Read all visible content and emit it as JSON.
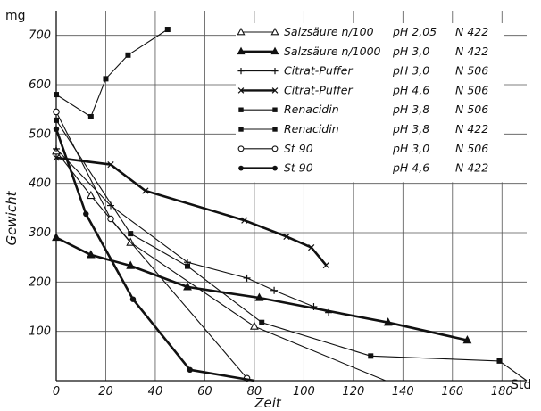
{
  "chart_data": {
    "type": "line",
    "title": "",
    "xlabel": "Zeit",
    "ylabel": "Gewicht",
    "y_unit": "mg",
    "x_unit": "Std",
    "xlim": [
      0,
      190
    ],
    "ylim": [
      0,
      750
    ],
    "x_ticks": [
      0,
      20,
      40,
      60,
      80,
      100,
      120,
      140,
      160,
      180
    ],
    "y_ticks": [
      100,
      200,
      300,
      400,
      500,
      600,
      700
    ],
    "grid": true,
    "legend_position": "top-right",
    "series": [
      {
        "label": "Salzsäure n/100",
        "ph": "pH 2,05",
        "code": "N 422",
        "marker": "triangle-open",
        "line": "thin",
        "points": [
          [
            0,
            465
          ],
          [
            14,
            375
          ],
          [
            30,
            280
          ],
          [
            80,
            110
          ],
          [
            133,
            0
          ]
        ]
      },
      {
        "label": "Salzsäure n/1000",
        "ph": "pH 3,0",
        "code": "N 422",
        "marker": "triangle-filled",
        "line": "thick",
        "points": [
          [
            0,
            290
          ],
          [
            14,
            255
          ],
          [
            30,
            233
          ],
          [
            53,
            190
          ],
          [
            82,
            168
          ],
          [
            134,
            118
          ],
          [
            166,
            82
          ]
        ]
      },
      {
        "label": "Citrat-Puffer",
        "ph": "pH 3,0",
        "code": "N 506",
        "marker": "plus",
        "line": "thin",
        "points": [
          [
            0,
            470
          ],
          [
            22,
            355
          ],
          [
            53,
            240
          ],
          [
            77,
            208
          ],
          [
            88,
            183
          ],
          [
            104,
            150
          ],
          [
            110,
            138
          ]
        ]
      },
      {
        "label": "Citrat-Puffer",
        "ph": "pH 4,6",
        "code": "N 506",
        "marker": "x",
        "line": "thick",
        "points": [
          [
            0,
            452
          ],
          [
            22,
            438
          ],
          [
            36,
            385
          ],
          [
            76,
            325
          ],
          [
            93,
            292
          ],
          [
            103,
            270
          ],
          [
            109,
            234
          ]
        ]
      },
      {
        "label": "Renacidin",
        "ph": "pH 3,8",
        "code": "N 506",
        "marker": "square-filled",
        "line": "thin",
        "points": [
          [
            0,
            580
          ],
          [
            14,
            535
          ],
          [
            20,
            612
          ],
          [
            29,
            660
          ],
          [
            45,
            712
          ]
        ]
      },
      {
        "label": "Renacidin",
        "ph": "pH 3,8",
        "code": "N 422",
        "marker": "square-filled",
        "line": "thin",
        "points": [
          [
            0,
            528
          ],
          [
            30,
            298
          ],
          [
            53,
            232
          ],
          [
            83,
            118
          ],
          [
            127,
            50
          ],
          [
            179,
            40
          ],
          [
            190,
            0
          ]
        ]
      },
      {
        "label": "St 90",
        "ph": "pH 3,0",
        "code": "N 506",
        "marker": "circle-open",
        "line": "thin",
        "points": [
          [
            0,
            545
          ],
          [
            22,
            328
          ],
          [
            77,
            5
          ]
        ]
      },
      {
        "label": "St 90",
        "ph": "pH 4,6",
        "code": "N 422",
        "marker": "circle-filled",
        "line": "thick",
        "points": [
          [
            0,
            510
          ],
          [
            12,
            338
          ],
          [
            31,
            165
          ],
          [
            54,
            22
          ],
          [
            80,
            0
          ]
        ]
      }
    ]
  }
}
